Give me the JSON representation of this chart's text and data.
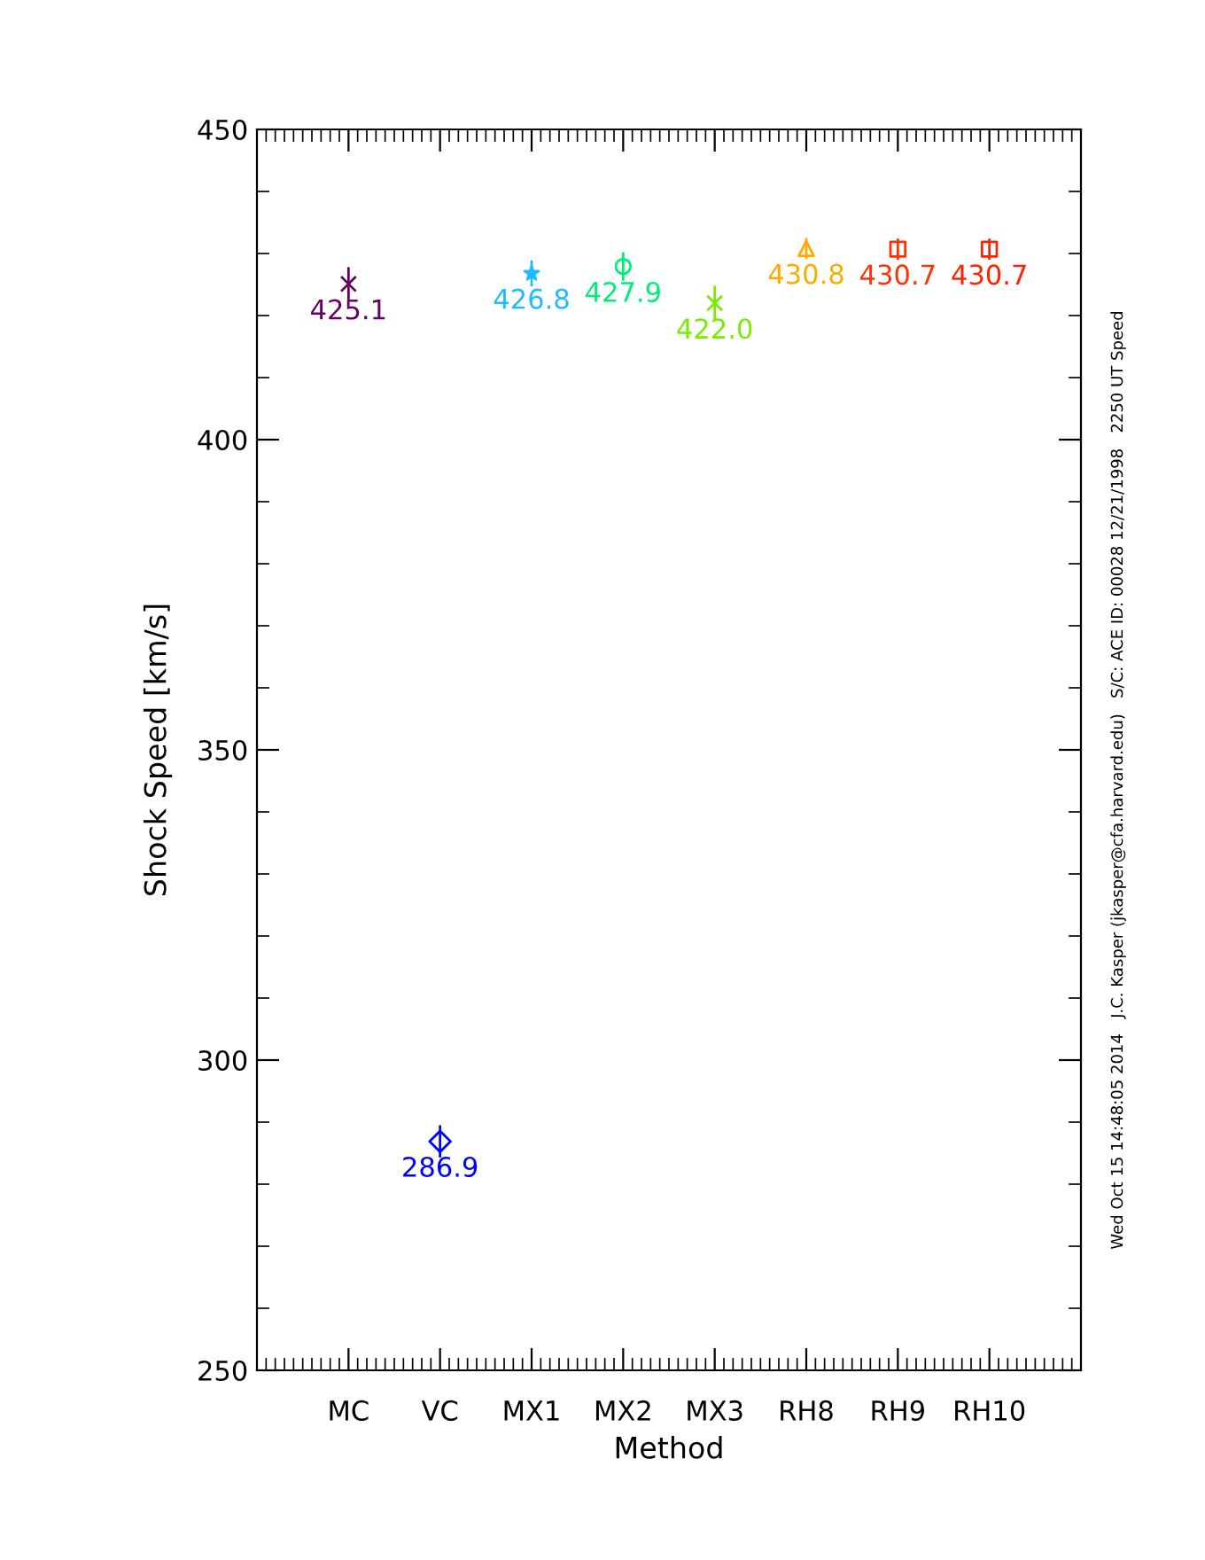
{
  "chart_data": {
    "type": "scatter",
    "xlabel": "Method",
    "ylabel": "Shock Speed [km/s]",
    "categories": [
      "MC",
      "VC",
      "MX1",
      "MX2",
      "MX3",
      "RH8",
      "RH9",
      "RH10"
    ],
    "ylim": [
      250,
      450
    ],
    "yticks": [
      250,
      300,
      350,
      400,
      450
    ],
    "grid": false,
    "series": [
      {
        "color": "#660066",
        "marker": "cross",
        "values": [
          425.1,
          null,
          null,
          null,
          null,
          null,
          null,
          null
        ],
        "errors": [
          2.7,
          null,
          null,
          null,
          null,
          null,
          null,
          null
        ],
        "value_labels": [
          "425.1",
          null,
          null,
          null,
          null,
          null,
          null,
          null
        ]
      },
      {
        "color": "#0000ff",
        "marker": "diamond",
        "values": [
          null,
          286.9,
          null,
          null,
          null,
          null,
          null,
          null
        ],
        "errors": [
          null,
          2.6,
          null,
          null,
          null,
          null,
          null,
          null
        ],
        "value_labels": [
          null,
          "286.9",
          null,
          null,
          null,
          null,
          null,
          null
        ]
      },
      {
        "color": "#22bbff",
        "marker": "star",
        "values": [
          null,
          null,
          426.8,
          null,
          null,
          null,
          null,
          null
        ],
        "errors": [
          null,
          null,
          2.1,
          null,
          null,
          null,
          null,
          null
        ],
        "value_labels": [
          null,
          null,
          "426.8",
          null,
          null,
          null,
          null,
          null
        ]
      },
      {
        "color": "#00ee77",
        "marker": "circle",
        "values": [
          null,
          null,
          null,
          427.9,
          null,
          null,
          null,
          null
        ],
        "errors": [
          null,
          null,
          null,
          2.3,
          null,
          null,
          null,
          null
        ],
        "value_labels": [
          null,
          null,
          null,
          "427.9",
          null,
          null,
          null,
          null
        ]
      },
      {
        "color": "#77ee00",
        "marker": "cross",
        "values": [
          null,
          null,
          null,
          null,
          422.0,
          null,
          null,
          null
        ],
        "errors": [
          null,
          null,
          null,
          null,
          2.8,
          null,
          null,
          null
        ],
        "value_labels": [
          null,
          null,
          null,
          null,
          "422.0",
          null,
          null,
          null
        ]
      },
      {
        "color": "#ffaa00",
        "marker": "triangle",
        "values": [
          null,
          null,
          null,
          null,
          null,
          430.8,
          null,
          null
        ],
        "errors": [
          null,
          null,
          null,
          null,
          null,
          1.7,
          null,
          null
        ],
        "value_labels": [
          null,
          null,
          null,
          null,
          null,
          "430.8",
          null,
          null
        ]
      },
      {
        "color": "#ff3300",
        "marker": "square",
        "values": [
          null,
          null,
          null,
          null,
          null,
          null,
          430.7,
          null
        ],
        "errors": [
          null,
          null,
          null,
          null,
          null,
          null,
          1.7,
          null
        ],
        "value_labels": [
          null,
          null,
          null,
          null,
          null,
          null,
          "430.7",
          null
        ]
      },
      {
        "color": "#ff2200",
        "marker": "square",
        "values": [
          null,
          null,
          null,
          null,
          null,
          null,
          null,
          430.7
        ],
        "errors": [
          null,
          null,
          null,
          null,
          null,
          null,
          null,
          1.7
        ],
        "value_labels": [
          null,
          null,
          null,
          null,
          null,
          null,
          null,
          "430.7"
        ]
      }
    ],
    "annotations": [
      "Wed Oct 15 14:48:05 2014   J.C. Kasper (jkasper@cfa.harvard.edu)   S/C: ACE ID: 00028 12/21/1998   2250 UT Speed"
    ]
  }
}
